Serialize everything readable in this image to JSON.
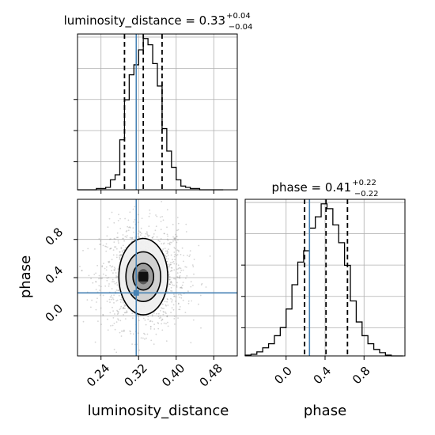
{
  "chart_data": {
    "type": "corner",
    "parameters": [
      "luminosity_distance",
      "phase"
    ],
    "truths": {
      "luminosity_distance": 0.315,
      "phase": 0.24
    },
    "panels": [
      {
        "id": "hist-luminosity_distance",
        "type": "histogram",
        "parameter": "luminosity_distance",
        "title_prefix": "luminosity_distance = 0.33",
        "median": 0.33,
        "err_plus": "+0.04",
        "err_minus": "−0.04",
        "quantiles": [
          0.29,
          0.33,
          0.37
        ],
        "xlim": [
          0.19,
          0.53
        ],
        "bin_edges": [
          0.19,
          0.2,
          0.21,
          0.22,
          0.23,
          0.24,
          0.25,
          0.26,
          0.27,
          0.28,
          0.29,
          0.3,
          0.31,
          0.32,
          0.33,
          0.34,
          0.35,
          0.36,
          0.37,
          0.38,
          0.39,
          0.4,
          0.41,
          0.42,
          0.43,
          0.44,
          0.45,
          0.46,
          0.47,
          0.48,
          0.49,
          0.5
        ],
        "counts": [
          0,
          0,
          0,
          0,
          1,
          1,
          2,
          8,
          12,
          40,
          72,
          92,
          100,
          112,
          121,
          116,
          101,
          83,
          49,
          31,
          18,
          8,
          3,
          2,
          1,
          1,
          0,
          0,
          0,
          0,
          0
        ]
      },
      {
        "id": "hist-phase",
        "type": "histogram",
        "parameter": "phase",
        "title_prefix": "phase = 0.41",
        "median": 0.41,
        "err_plus": "+0.22",
        "err_minus": "−0.22",
        "quantiles": [
          0.19,
          0.41,
          0.63
        ],
        "xlim": [
          -0.42,
          1.22
        ],
        "bin_edges": [
          -0.42,
          -0.36,
          -0.3,
          -0.24,
          -0.18,
          -0.12,
          -0.06,
          0.0,
          0.06,
          0.12,
          0.18,
          0.24,
          0.3,
          0.36,
          0.42,
          0.48,
          0.54,
          0.6,
          0.66,
          0.72,
          0.78,
          0.84,
          0.9,
          0.96,
          1.02,
          1.08,
          1.14,
          1.2
        ],
        "counts": [
          1,
          2,
          5,
          10,
          15,
          25,
          35,
          58,
          88,
          116,
          130,
          158,
          172,
          188,
          182,
          162,
          140,
          112,
          68,
          42,
          25,
          15,
          8,
          4,
          1,
          0,
          0
        ]
      },
      {
        "id": "contour-phase-vs-luminosity_distance",
        "type": "2d-density",
        "x_parameter": "luminosity_distance",
        "y_parameter": "phase",
        "xlim": [
          0.19,
          0.53
        ],
        "ylim": [
          -0.42,
          1.22
        ],
        "center": [
          0.33,
          0.41
        ],
        "contour_levels": [
          {
            "sigma_x": 0.012,
            "sigma_y": 0.08
          },
          {
            "sigma_x": 0.022,
            "sigma_y": 0.14
          },
          {
            "sigma_x": 0.037,
            "sigma_y": 0.26
          },
          {
            "sigma_x": 0.052,
            "sigma_y": 0.4
          }
        ]
      }
    ],
    "axes": {
      "luminosity_distance": {
        "ticks": [
          "0.24",
          "0.32",
          "0.40",
          "0.48"
        ],
        "tick_values": [
          0.24,
          0.32,
          0.4,
          0.48
        ],
        "xlabel": "luminosity_distance"
      },
      "phase": {
        "ticks": [
          "0.0",
          "0.4",
          "0.8"
        ],
        "tick_values": [
          0.0,
          0.4,
          0.8
        ],
        "label": "phase"
      }
    },
    "grid": true,
    "colors": {
      "hist": "#000000",
      "truth": "#4682b4",
      "quantile": "#000000",
      "grid": "#b0b0b0",
      "scatter": "#888888"
    }
  }
}
